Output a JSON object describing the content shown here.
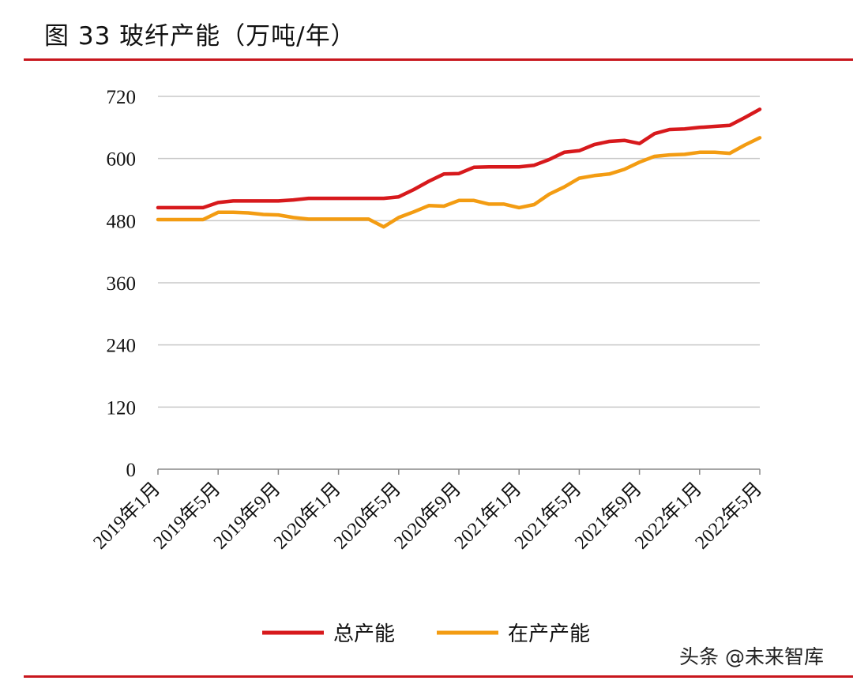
{
  "title": "图 33 玻纤产能（万吨/年）",
  "watermark": "头条 @未来智库",
  "colors": {
    "rule": "#c8161d",
    "grid": "#c8c8c8",
    "axis": "#888888"
  },
  "chart_data": {
    "type": "line",
    "title": "玻纤产能（万吨/年）",
    "xlabel": "",
    "ylabel": "",
    "ylim": [
      0,
      720
    ],
    "yticks": [
      0,
      120,
      240,
      360,
      480,
      600,
      720
    ],
    "x_tick_labels": [
      "2019年1月",
      "2019年5月",
      "2019年9月",
      "2020年1月",
      "2020年5月",
      "2020年9月",
      "2021年1月",
      "2021年5月",
      "2021年9月",
      "2022年1月",
      "2022年5月"
    ],
    "x": [
      "2019-01",
      "2019-02",
      "2019-03",
      "2019-04",
      "2019-05",
      "2019-06",
      "2019-07",
      "2019-08",
      "2019-09",
      "2019-10",
      "2019-11",
      "2019-12",
      "2020-01",
      "2020-02",
      "2020-03",
      "2020-04",
      "2020-05",
      "2020-06",
      "2020-07",
      "2020-08",
      "2020-09",
      "2020-10",
      "2020-11",
      "2020-12",
      "2021-01",
      "2021-02",
      "2021-03",
      "2021-04",
      "2021-05",
      "2021-06",
      "2021-07",
      "2021-08",
      "2021-09",
      "2021-10",
      "2021-11",
      "2021-12",
      "2022-01",
      "2022-02",
      "2022-03",
      "2022-04",
      "2022-05"
    ],
    "grid": true,
    "legend_position": "bottom",
    "series": [
      {
        "name": "总产能",
        "color": "#d7191c",
        "values": [
          505,
          505,
          505,
          505,
          515,
          518,
          518,
          518,
          518,
          520,
          523,
          523,
          523,
          523,
          523,
          523,
          526,
          540,
          556,
          570,
          571,
          583,
          584,
          584,
          584,
          587,
          598,
          612,
          615,
          627,
          633,
          635,
          629,
          648,
          656,
          657,
          660,
          662,
          664,
          679,
          695
        ]
      },
      {
        "name": "在产产能",
        "color": "#f39c12",
        "values": [
          482,
          482,
          482,
          482,
          496,
          496,
          495,
          492,
          491,
          486,
          483,
          483,
          483,
          483,
          483,
          468,
          486,
          497,
          509,
          508,
          519,
          519,
          512,
          512,
          505,
          511,
          531,
          545,
          562,
          567,
          570,
          579,
          593,
          604,
          607,
          608,
          612,
          612,
          610,
          626,
          640
        ]
      }
    ]
  }
}
